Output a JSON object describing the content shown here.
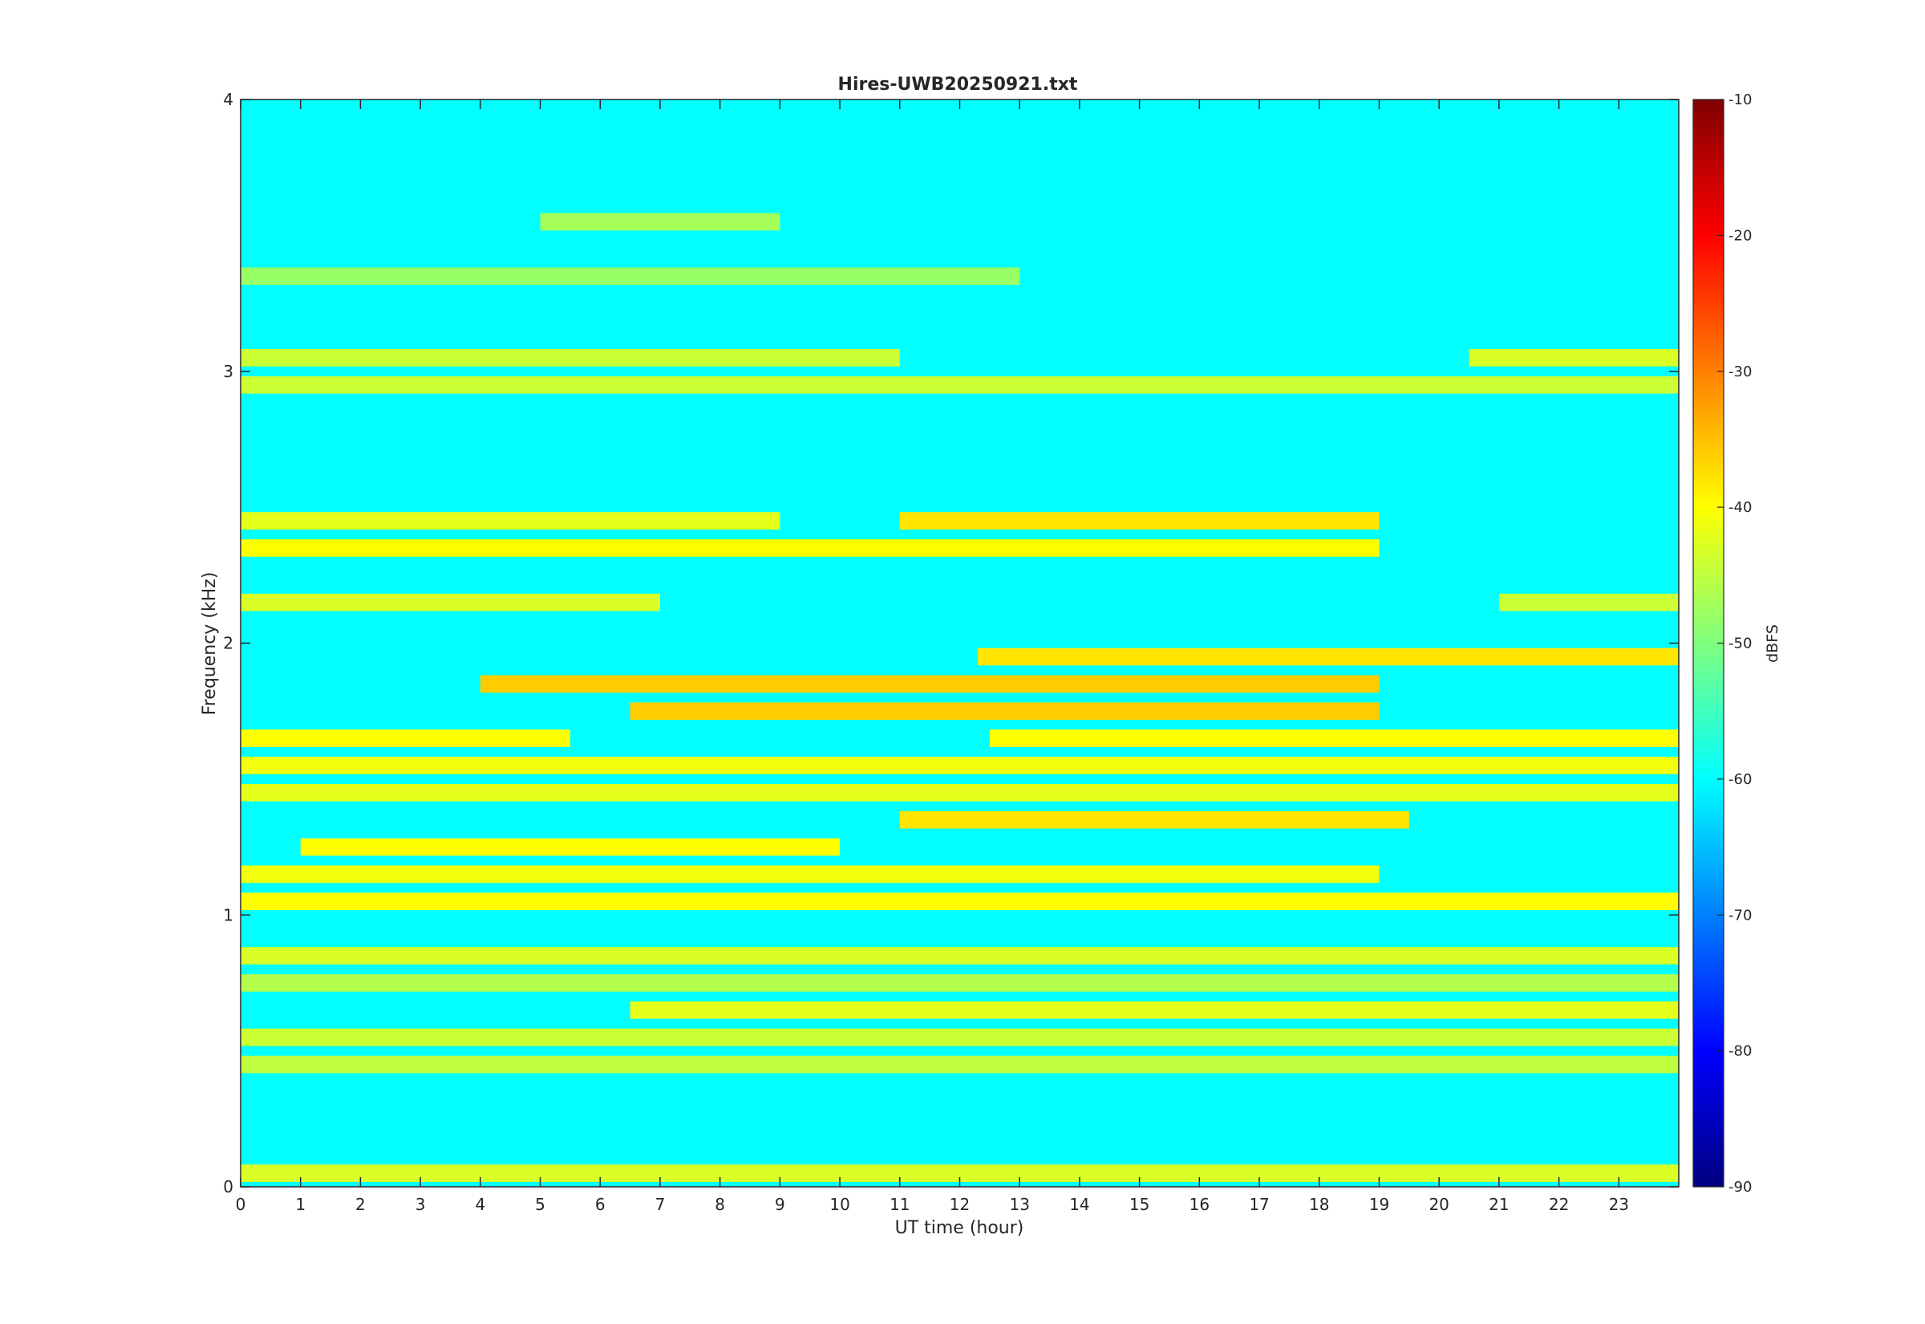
{
  "chart_data": {
    "type": "heatmap",
    "title": "Hires-UWB20250921.txt",
    "xlabel": "UT time (hour)",
    "ylabel": "Frequency (kHz)",
    "xlim": [
      0,
      24
    ],
    "ylim": [
      0,
      4
    ],
    "x_ticks": [
      0,
      1,
      2,
      3,
      4,
      5,
      6,
      7,
      8,
      9,
      10,
      11,
      12,
      13,
      14,
      15,
      16,
      17,
      18,
      19,
      20,
      21,
      22,
      23
    ],
    "y_ticks": [
      0,
      1,
      2,
      3,
      4
    ],
    "colorbar": {
      "label": "dBFS",
      "range": [
        -90,
        -10
      ],
      "ticks": [
        -90,
        -80,
        -70,
        -60,
        -50,
        -40,
        -30,
        -20,
        -10
      ],
      "colormap": "jet"
    },
    "band_spacing_khz": 0.1,
    "background_level_dbfs": -60,
    "strong_band_segments": [
      {
        "f_khz": 0.05,
        "t_start_h": 0,
        "t_end_h": 24,
        "level_dbfs": -43
      },
      {
        "f_khz": 0.45,
        "t_start_h": 0,
        "t_end_h": 24,
        "level_dbfs": -45
      },
      {
        "f_khz": 0.55,
        "t_start_h": 0,
        "t_end_h": 24,
        "level_dbfs": -44
      },
      {
        "f_khz": 0.65,
        "t_start_h": 6.5,
        "t_end_h": 24,
        "level_dbfs": -42
      },
      {
        "f_khz": 0.75,
        "t_start_h": 0,
        "t_end_h": 24,
        "level_dbfs": -46
      },
      {
        "f_khz": 0.85,
        "t_start_h": 0,
        "t_end_h": 24,
        "level_dbfs": -43
      },
      {
        "f_khz": 1.05,
        "t_start_h": 0,
        "t_end_h": 24,
        "level_dbfs": -40
      },
      {
        "f_khz": 1.15,
        "t_start_h": 0,
        "t_end_h": 19,
        "level_dbfs": -41
      },
      {
        "f_khz": 1.25,
        "t_start_h": 1,
        "t_end_h": 10,
        "level_dbfs": -40
      },
      {
        "f_khz": 1.35,
        "t_start_h": 11,
        "t_end_h": 19.5,
        "level_dbfs": -38
      },
      {
        "f_khz": 1.45,
        "t_start_h": 0,
        "t_end_h": 24,
        "level_dbfs": -42
      },
      {
        "f_khz": 1.55,
        "t_start_h": 0,
        "t_end_h": 24,
        "level_dbfs": -41
      },
      {
        "f_khz": 1.65,
        "t_start_h": 0,
        "t_end_h": 5.5,
        "level_dbfs": -40
      },
      {
        "f_khz": 1.65,
        "t_start_h": 12.5,
        "t_end_h": 24,
        "level_dbfs": -40
      },
      {
        "f_khz": 1.75,
        "t_start_h": 6.5,
        "t_end_h": 19,
        "level_dbfs": -36
      },
      {
        "f_khz": 1.85,
        "t_start_h": 4,
        "t_end_h": 19,
        "level_dbfs": -36
      },
      {
        "f_khz": 1.95,
        "t_start_h": 12.3,
        "t_end_h": 24,
        "level_dbfs": -38
      },
      {
        "f_khz": 2.15,
        "t_start_h": 0,
        "t_end_h": 7,
        "level_dbfs": -43
      },
      {
        "f_khz": 2.15,
        "t_start_h": 21,
        "t_end_h": 24,
        "level_dbfs": -44
      },
      {
        "f_khz": 2.35,
        "t_start_h": 0,
        "t_end_h": 19,
        "level_dbfs": -40
      },
      {
        "f_khz": 2.45,
        "t_start_h": 0,
        "t_end_h": 9,
        "level_dbfs": -42
      },
      {
        "f_khz": 2.45,
        "t_start_h": 11,
        "t_end_h": 19,
        "level_dbfs": -38
      },
      {
        "f_khz": 2.95,
        "t_start_h": 0,
        "t_end_h": 24,
        "level_dbfs": -44
      },
      {
        "f_khz": 3.05,
        "t_start_h": 0,
        "t_end_h": 11,
        "level_dbfs": -44
      },
      {
        "f_khz": 3.05,
        "t_start_h": 20.5,
        "t_end_h": 24,
        "level_dbfs": -43
      },
      {
        "f_khz": 3.35,
        "t_start_h": 0,
        "t_end_h": 13,
        "level_dbfs": -48
      },
      {
        "f_khz": 3.55,
        "t_start_h": 5,
        "t_end_h": 9,
        "level_dbfs": -47
      }
    ]
  }
}
